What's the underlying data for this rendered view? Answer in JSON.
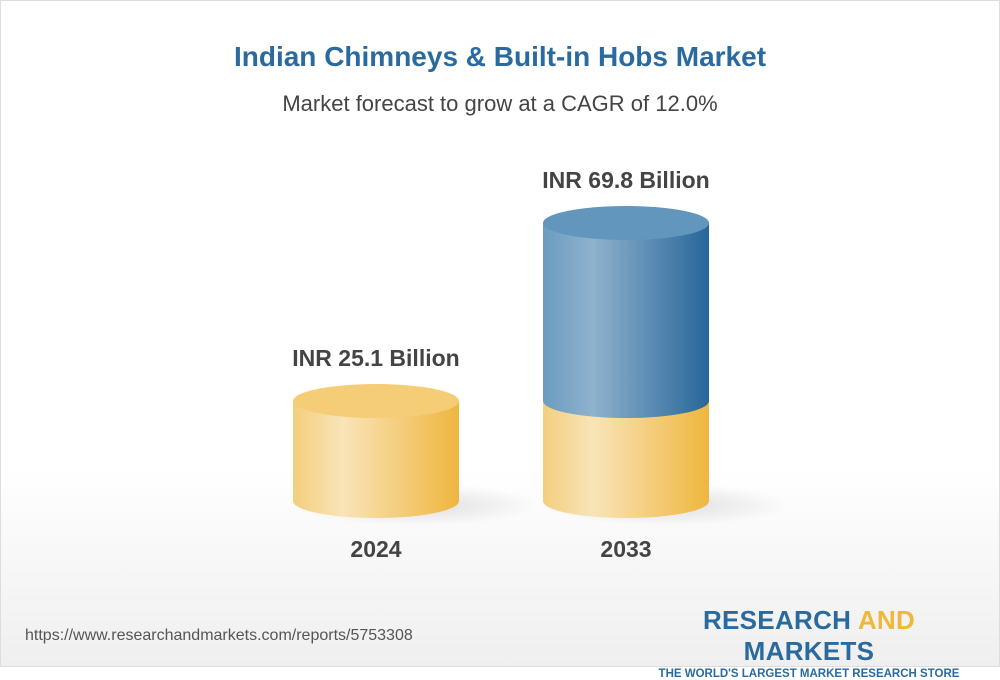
{
  "title": "Indian Chimneys & Built-in Hobs Market",
  "subtitle": "Market forecast to grow at a CAGR of 12.0%",
  "chart_data": {
    "type": "bar",
    "style": "3d-cylinder",
    "categories": [
      "2024",
      "2033"
    ],
    "values": [
      25.1,
      69.8
    ],
    "data_labels": [
      "INR 25.1 Billion",
      "INR 69.8 Billion"
    ],
    "unit": "INR Billion",
    "colors": {
      "base": "#f2c15a",
      "growth": "#3d7aaa"
    }
  },
  "footer": {
    "url": "https://www.researchandmarkets.com/reports/5753308",
    "logo": {
      "word1": "RESEARCH",
      "word2": "AND",
      "word3": "MARKETS",
      "tagline": "THE WORLD'S LARGEST MARKET RESEARCH STORE"
    }
  }
}
